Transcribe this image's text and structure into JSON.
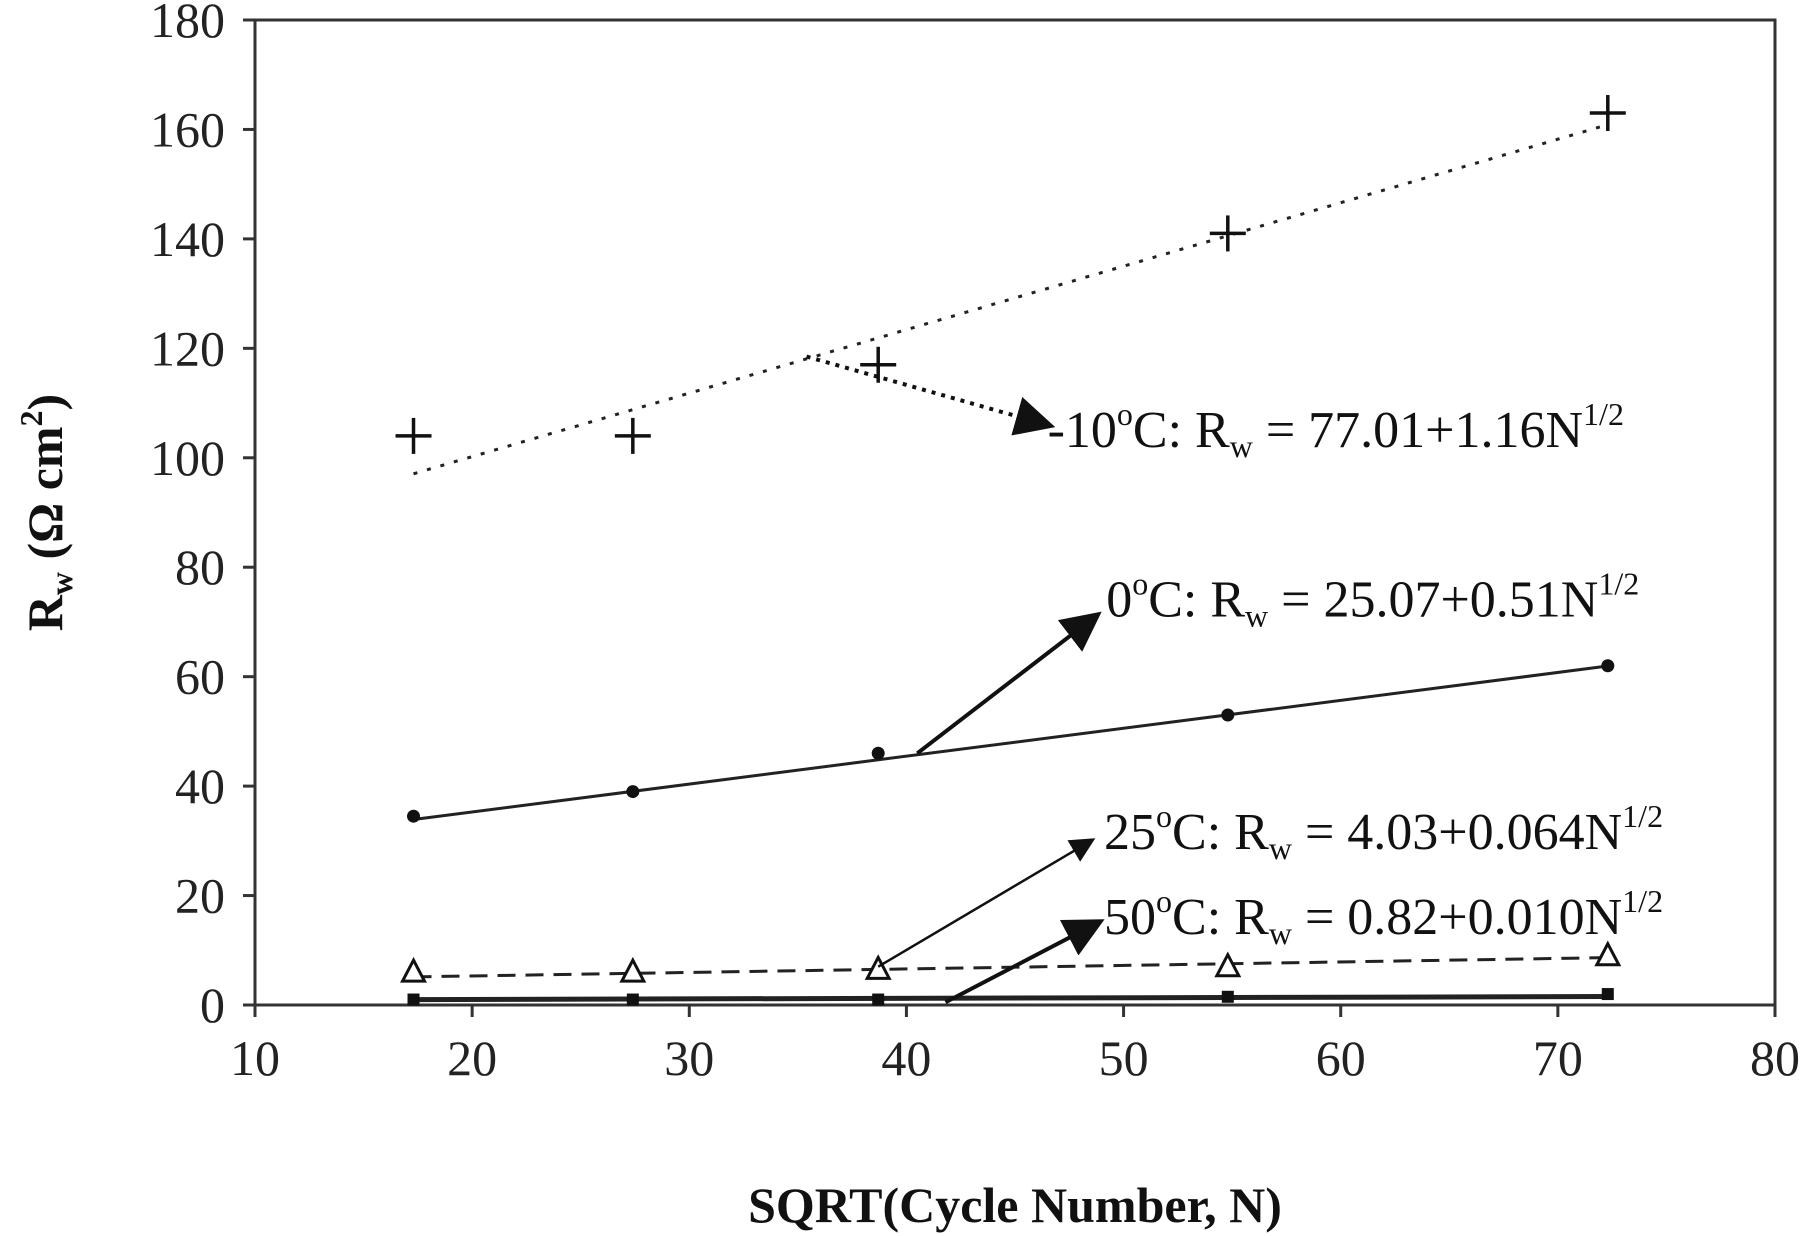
{
  "chart_data": {
    "type": "scatter",
    "xlabel": "SQRT(Cycle Number, N)",
    "ylabel": {
      "main": "R",
      "sub": "w",
      "unit_open": " (Ω cm",
      "unit_sup": "2",
      "unit_close": ")"
    },
    "xlim": [
      10,
      80
    ],
    "ylim": [
      0,
      180
    ],
    "x_ticks": [
      10,
      20,
      30,
      40,
      50,
      60,
      70,
      80
    ],
    "y_ticks": [
      0,
      20,
      40,
      60,
      80,
      100,
      120,
      140,
      160,
      180
    ],
    "grid": false,
    "legend": "none",
    "series": [
      {
        "marker": "plus",
        "line_style": "dotted",
        "x": [
          17.3,
          27.4,
          38.7,
          54.8,
          72.3
        ],
        "y": [
          104,
          104,
          117,
          141,
          163
        ],
        "fit": {
          "intercept": 77.01,
          "slope": 1.16,
          "x_range": [
            17.3,
            72.3
          ]
        }
      },
      {
        "marker": "dot",
        "line_style": "solid",
        "x": [
          17.3,
          27.4,
          38.7,
          54.8,
          72.3
        ],
        "y": [
          34.5,
          39,
          46,
          53,
          62
        ],
        "fit": {
          "intercept": 25.07,
          "slope": 0.51,
          "x_range": [
            17.3,
            72.3
          ]
        }
      },
      {
        "marker": "triangle",
        "line_style": "dashed",
        "x": [
          17.3,
          27.4,
          38.7,
          54.8,
          72.3
        ],
        "y": [
          6,
          6,
          6.5,
          7,
          9
        ],
        "fit": {
          "intercept": 4.03,
          "slope": 0.064,
          "x_range": [
            17.3,
            72.3
          ]
        }
      },
      {
        "marker": "square",
        "line_style": "solid-thick",
        "x": [
          17.3,
          27.4,
          38.7,
          54.8,
          72.3
        ],
        "y": [
          1,
          1,
          1,
          1.5,
          2
        ],
        "fit": {
          "intercept": 0.82,
          "slope": 0.01,
          "x_range": [
            17.3,
            72.3
          ]
        }
      }
    ],
    "annotations": [
      {
        "temp": "-10",
        "deg": "o",
        "lhs": "C: R",
        "sub": "w",
        "rhs": " = 77.01+1.16N",
        "sup": "1/2",
        "anchor_x": 46.5,
        "anchor_y": 102,
        "arrow_from": [
          35.4,
          118.5
        ],
        "arrow_to": [
          46.5,
          106
        ]
      },
      {
        "temp": "0",
        "deg": "o",
        "lhs": "C: R",
        "sub": "w",
        "rhs": " = 25.07+0.51N",
        "sup": "1/2",
        "anchor_x": 49.2,
        "anchor_y": 71,
        "arrow_from": [
          40.5,
          46
        ],
        "arrow_to": [
          48.7,
          71
        ]
      },
      {
        "temp": "25",
        "deg": "o",
        "lhs": "C: R",
        "sub": "w",
        "rhs": " = 4.03+0.064N",
        "sup": "1/2",
        "anchor_x": 49.1,
        "anchor_y": 28.5,
        "arrow_from": [
          38.7,
          7
        ],
        "arrow_to": [
          48.5,
          30
        ]
      },
      {
        "temp": "50",
        "deg": "o",
        "lhs": "C: R",
        "sub": "w",
        "rhs": " = 0.82+0.010N",
        "sup": "1/2",
        "anchor_x": 49.1,
        "anchor_y": 13,
        "arrow_from": [
          41.8,
          0.5
        ],
        "arrow_to": [
          48.8,
          15
        ]
      }
    ]
  }
}
